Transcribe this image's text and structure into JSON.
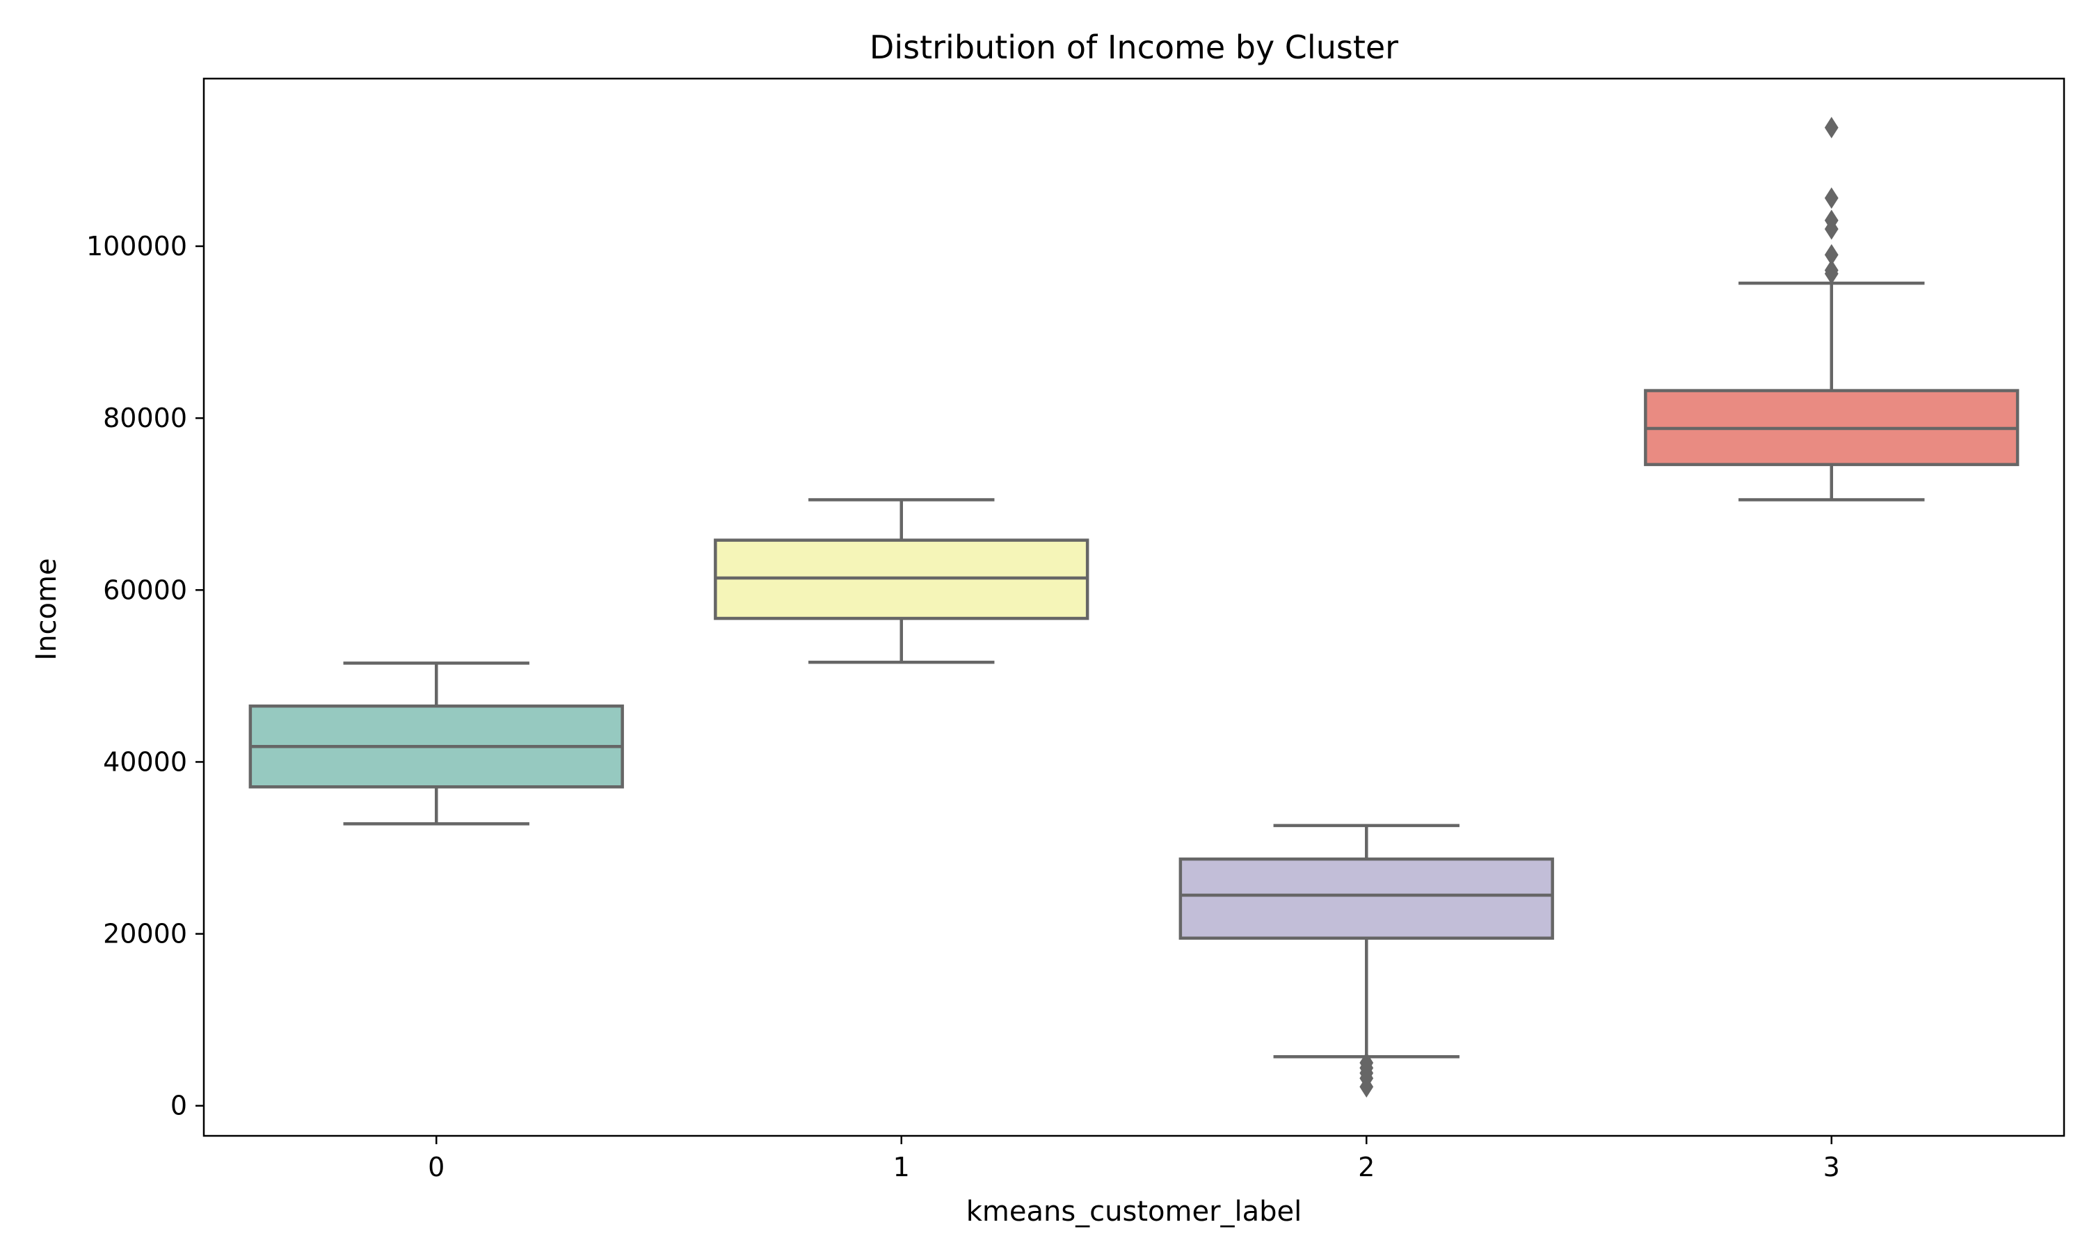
{
  "chart_data": {
    "type": "box",
    "title": "Distribution of Income by Cluster",
    "xlabel": "kmeans_customer_label",
    "ylabel": "Income",
    "categories": [
      "0",
      "1",
      "2",
      "3"
    ],
    "ylim": [
      -3500,
      119500
    ],
    "yticks": [
      0,
      20000,
      40000,
      60000,
      80000,
      100000
    ],
    "ytick_labels": [
      "0",
      "20000",
      "40000",
      "60000",
      "80000",
      "100000"
    ],
    "grid": false,
    "boxes": [
      {
        "category": "0",
        "whisker_low": 32800,
        "q1": 37100,
        "median": 41800,
        "q3": 46500,
        "whisker_high": 51500,
        "outliers": [],
        "color": "#96c9c0"
      },
      {
        "category": "1",
        "whisker_low": 51600,
        "q1": 56700,
        "median": 61400,
        "q3": 65800,
        "whisker_high": 70500,
        "outliers": [],
        "color": "#f5f5b8"
      },
      {
        "category": "2",
        "whisker_low": 5700,
        "q1": 19500,
        "median": 24500,
        "q3": 28700,
        "whisker_high": 32600,
        "outliers": [
          5000,
          4400,
          3800,
          3200,
          2200
        ],
        "color": "#c2bed8"
      },
      {
        "category": "3",
        "whisker_low": 70500,
        "q1": 74600,
        "median": 78800,
        "q3": 83200,
        "whisker_high": 95700,
        "outliers": [
          113800,
          105600,
          103000,
          102000,
          99000,
          97200,
          96800
        ],
        "color": "#e98b82"
      }
    ],
    "line_color": "#666666"
  }
}
